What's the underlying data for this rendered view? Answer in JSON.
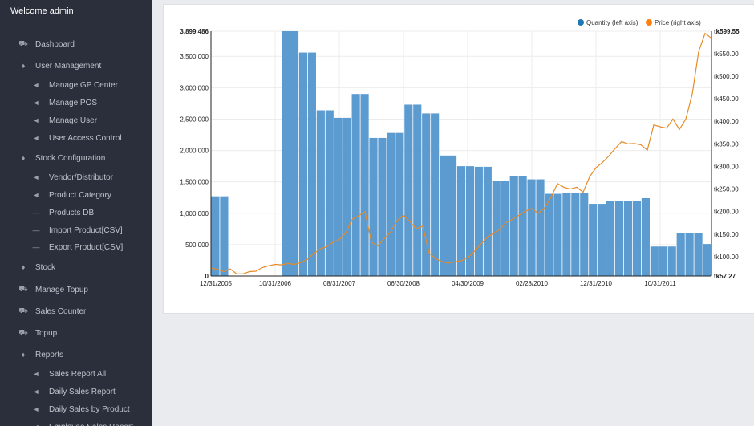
{
  "sidebar": {
    "welcome": "Welcome  admin",
    "items": [
      {
        "label": "Dashboard",
        "icon": "truck-icon",
        "level": 1
      },
      {
        "label": "User Management",
        "icon": "drop-icon",
        "level": 1
      },
      {
        "label": "Manage GP Center",
        "icon": "megaphone-icon",
        "level": 2
      },
      {
        "label": "Manage POS",
        "icon": "megaphone-icon",
        "level": 2
      },
      {
        "label": "Manage User",
        "icon": "megaphone-icon",
        "level": 2
      },
      {
        "label": "User Access Control",
        "icon": "megaphone-icon",
        "level": 2
      },
      {
        "label": "Stock Configuration",
        "icon": "drop-icon",
        "level": 1
      },
      {
        "label": "Vendor/Distributor",
        "icon": "megaphone-icon",
        "level": 2
      },
      {
        "label": "Product Category",
        "icon": "megaphone-icon",
        "level": 2
      },
      {
        "label": "Products DB",
        "icon": "minus-icon",
        "level": 2
      },
      {
        "label": "Import Product[CSV]",
        "icon": "minus-icon",
        "level": 2
      },
      {
        "label": "Export Product[CSV]",
        "icon": "minus-icon",
        "level": 2
      },
      {
        "label": "Stock",
        "icon": "drop-icon",
        "level": 1
      },
      {
        "label": "Manage Topup",
        "icon": "truck-icon",
        "level": 1
      },
      {
        "label": "Sales Counter",
        "icon": "truck-icon",
        "level": 1
      },
      {
        "label": "Topup",
        "icon": "truck-icon",
        "level": 1
      },
      {
        "label": "Reports",
        "icon": "drop-icon",
        "level": 1
      },
      {
        "label": "Sales Report All",
        "icon": "megaphone-icon",
        "level": 2
      },
      {
        "label": "Daily Sales Report",
        "icon": "megaphone-icon",
        "level": 2
      },
      {
        "label": "Daily Sales by Product",
        "icon": "megaphone-icon",
        "level": 2
      },
      {
        "label": "Employee Sales Report",
        "icon": "megaphone-icon",
        "level": 2
      }
    ]
  },
  "chart_data": {
    "type": "bar",
    "legend": [
      "Quantity (left axis)",
      "Price (right axis)"
    ],
    "legend_placement": "top-right",
    "colors": {
      "bars": "#5b9bd0",
      "line": "#e88a26",
      "legend_qty": "#1f77b4",
      "legend_price": "#ff7f0e"
    },
    "x_ticks": [
      "12/31/2005",
      "10/31/2006",
      "08/31/2007",
      "06/30/2008",
      "04/30/2009",
      "02/28/2010",
      "12/31/2010",
      "10/31/2011"
    ],
    "y_left_ticks": [
      "3,899,486",
      "3,500,000",
      "3,000,000",
      "2,500,000",
      "2,000,000",
      "1,500,000",
      "1,000,000",
      "500,000",
      "0"
    ],
    "y_right_ticks": [
      "tk599.55",
      "tk550.00",
      "tk500.00",
      "tk450.00",
      "tk400.00",
      "tk350.00",
      "tk300.00",
      "tk250.00",
      "tk200.00",
      "tk150.00",
      "tk100.00",
      "tk57.27"
    ],
    "ylim_left": [
      0,
      3899486
    ],
    "ylim_right": [
      57.27,
      599.55
    ],
    "quantity": [
      1270000,
      1270000,
      0,
      0,
      0,
      0,
      0,
      0,
      3899486,
      3899486,
      3560000,
      3560000,
      2640000,
      2640000,
      2520000,
      2520000,
      2900000,
      2900000,
      2200000,
      2200000,
      2280000,
      2280000,
      2730000,
      2730000,
      2590000,
      2590000,
      1920000,
      1920000,
      1750000,
      1750000,
      1740000,
      1740000,
      1510000,
      1510000,
      1590000,
      1590000,
      1540000,
      1540000,
      1310000,
      1310000,
      1330000,
      1330000,
      1330000,
      1150000,
      1150000,
      1190000,
      1190000,
      1190000,
      1190000,
      1240000,
      470000,
      470000,
      470000,
      690000,
      690000,
      690000,
      510000
    ],
    "price": [
      75,
      72,
      67,
      73,
      62,
      62,
      67,
      68,
      76,
      80,
      83,
      82,
      85,
      83,
      87,
      94,
      107,
      117,
      122,
      132,
      138,
      152,
      183,
      191,
      200,
      132,
      124,
      140,
      155,
      180,
      192,
      178,
      162,
      168,
      108,
      96,
      89,
      86,
      89,
      91,
      98,
      111,
      127,
      142,
      152,
      160,
      176,
      183,
      192,
      201,
      207,
      196,
      208,
      232,
      262,
      254,
      250,
      254,
      243,
      277,
      297,
      309,
      323,
      340,
      355,
      350,
      351,
      348,
      336,
      392,
      388,
      385,
      405,
      382,
      405,
      460,
      555,
      595,
      584
    ]
  }
}
